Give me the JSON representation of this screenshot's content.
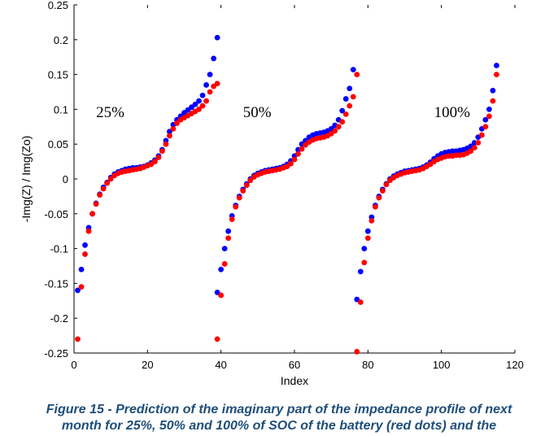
{
  "chart_data": {
    "type": "scatter",
    "title": "",
    "xlabel": "Index",
    "ylabel": "-Img(Z) / Img(Zo)",
    "xlim": [
      0,
      120
    ],
    "ylim": [
      -0.25,
      0.25
    ],
    "xticks": [
      "0",
      "20",
      "40",
      "60",
      "80",
      "100",
      "120"
    ],
    "yticks": [
      "0.25",
      "0.2",
      "0.15",
      "0.1",
      "0.05",
      "0",
      "-0.05",
      "-0.1",
      "-0.15",
      "-0.2",
      "-0.25"
    ],
    "annotations": [
      {
        "text": "25%",
        "x": 6,
        "y": 0.097
      },
      {
        "text": "50%",
        "x": 46,
        "y": 0.097
      },
      {
        "text": "100%",
        "x": 98,
        "y": 0.097
      }
    ],
    "series": [
      {
        "name": "blue",
        "color": "#0000ff",
        "segments": [
          {
            "x_start": 1,
            "values": [
              -0.16,
              -0.13,
              -0.095,
              -0.07,
              -0.05,
              -0.035,
              -0.022,
              -0.012,
              -0.005,
              0.002,
              0.007,
              0.01,
              0.012,
              0.014,
              0.015,
              0.016,
              0.016,
              0.017,
              0.018,
              0.02,
              0.023,
              0.027,
              0.033,
              0.042,
              0.055,
              0.068,
              0.078,
              0.085,
              0.09,
              0.095,
              0.099,
              0.103,
              0.107,
              0.112,
              0.12,
              0.135,
              0.15,
              0.173,
              0.203
            ]
          },
          {
            "x_start": 39,
            "values": [
              -0.163,
              -0.13,
              -0.1,
              -0.075,
              -0.053,
              -0.038,
              -0.025,
              -0.015,
              -0.007,
              0.0,
              0.005,
              0.008,
              0.01,
              0.012,
              0.013,
              0.014,
              0.015,
              0.016,
              0.018,
              0.021,
              0.026,
              0.033,
              0.042,
              0.05,
              0.055,
              0.06,
              0.063,
              0.065,
              0.066,
              0.067,
              0.069,
              0.072,
              0.077,
              0.085,
              0.098,
              0.115,
              0.13,
              0.157
            ]
          },
          {
            "x_start": 77,
            "values": [
              -0.173,
              -0.133,
              -0.1,
              -0.075,
              -0.055,
              -0.038,
              -0.025,
              -0.015,
              -0.007,
              0.0,
              0.004,
              0.007,
              0.009,
              0.011,
              0.012,
              0.013,
              0.014,
              0.015,
              0.017,
              0.02,
              0.024,
              0.029,
              0.033,
              0.036,
              0.038,
              0.039,
              0.04,
              0.04,
              0.041,
              0.042,
              0.044,
              0.047,
              0.052,
              0.06,
              0.072,
              0.085,
              0.1,
              0.127,
              0.163
            ]
          }
        ]
      },
      {
        "name": "red",
        "color": "#ff0000",
        "segments": [
          {
            "x_start": 1,
            "values": [
              -0.23,
              -0.155,
              -0.108,
              -0.075,
              -0.05,
              -0.036,
              -0.023,
              -0.014,
              -0.006,
              0.0,
              0.005,
              0.008,
              0.01,
              0.011,
              0.012,
              0.013,
              0.014,
              0.015,
              0.017,
              0.019,
              0.021,
              0.025,
              0.031,
              0.04,
              0.05,
              0.062,
              0.072,
              0.08,
              0.085,
              0.088,
              0.091,
              0.094,
              0.097,
              0.1,
              0.105,
              0.112,
              0.125,
              0.133,
              0.137
            ]
          },
          {
            "x_start": 39,
            "values": [
              -0.23,
              -0.167,
              -0.122,
              -0.085,
              -0.058,
              -0.04,
              -0.027,
              -0.017,
              -0.009,
              -0.002,
              0.003,
              0.006,
              0.008,
              0.01,
              0.011,
              0.012,
              0.013,
              0.014,
              0.016,
              0.018,
              0.022,
              0.028,
              0.036,
              0.043,
              0.049,
              0.053,
              0.056,
              0.058,
              0.059,
              0.06,
              0.062,
              0.065,
              0.069,
              0.075,
              0.082,
              0.093,
              0.105,
              0.118,
              0.15
            ]
          },
          {
            "x_start": 77,
            "values": [
              -0.248,
              -0.177,
              -0.12,
              -0.085,
              -0.06,
              -0.04,
              -0.027,
              -0.017,
              -0.008,
              -0.002,
              0.002,
              0.005,
              0.007,
              0.009,
              0.01,
              0.011,
              0.012,
              0.013,
              0.015,
              0.018,
              0.021,
              0.025,
              0.028,
              0.03,
              0.032,
              0.033,
              0.033,
              0.034,
              0.034,
              0.035,
              0.037,
              0.04,
              0.045,
              0.052,
              0.063,
              0.075,
              0.09,
              0.112,
              0.15
            ]
          }
        ]
      }
    ]
  },
  "caption": {
    "line1": "Figure 15 - Prediction of the imaginary part of the impedance profile of next",
    "line2": "month for 25%, 50% and 100% of SOC of the battery (red dots) and the"
  }
}
